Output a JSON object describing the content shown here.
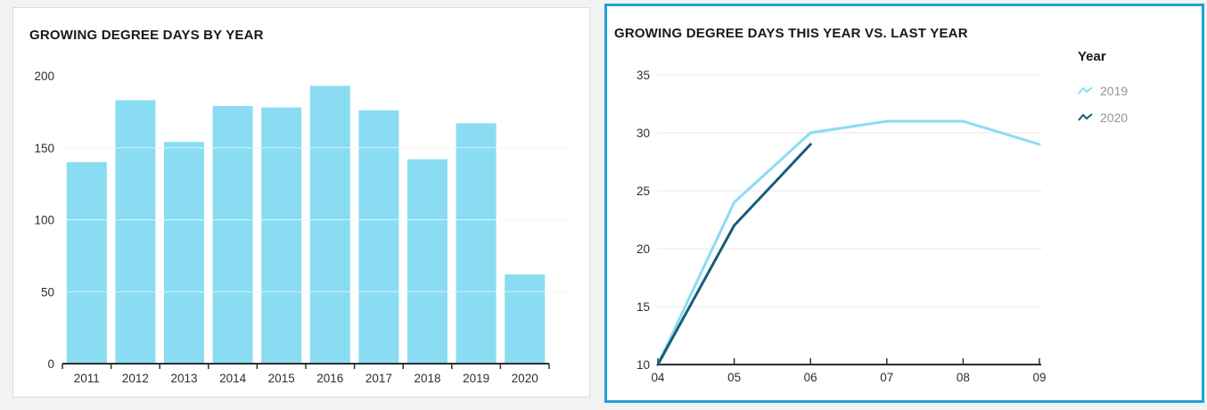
{
  "page": {
    "background": "#f1f2f2",
    "selected_panel_border": "#1fa2db"
  },
  "chart_data": [
    {
      "type": "bar",
      "title": "GROWING DEGREE DAYS BY YEAR",
      "categories": [
        "2011",
        "2012",
        "2013",
        "2014",
        "2015",
        "2016",
        "2017",
        "2018",
        "2019",
        "2020"
      ],
      "values": [
        140,
        183,
        154,
        179,
        178,
        193,
        176,
        142,
        167,
        62
      ],
      "xlabel": "",
      "ylabel": "",
      "ylim": [
        0,
        200
      ],
      "yticks": [
        0,
        50,
        100,
        150,
        200
      ],
      "grid": true,
      "bar_color": "#8adcf2",
      "axis_color": "#2b2f33",
      "grid_color": "#e9eaea",
      "tick_label_color": "#2b2f33"
    },
    {
      "type": "line",
      "title": "GROWING DEGREE DAYS THIS YEAR VS. LAST YEAR",
      "x": [
        "04",
        "05",
        "06",
        "07",
        "08",
        "09"
      ],
      "ylim": [
        10,
        35
      ],
      "yticks": [
        10,
        15,
        20,
        25,
        30,
        35
      ],
      "grid": true,
      "legend_title": "Year",
      "legend_position": "right",
      "series": [
        {
          "name": "2019",
          "color": "#8adcf2",
          "values": [
            10,
            24,
            30,
            31,
            31,
            29
          ]
        },
        {
          "name": "2020",
          "color": "#175d7c",
          "values": [
            10,
            22,
            29,
            null,
            null,
            null
          ]
        }
      ],
      "axis_color": "#2b2f33",
      "grid_color": "#e9eaea",
      "tick_label_color": "#2b2f33",
      "legend_text_color": "#8d969e"
    }
  ]
}
